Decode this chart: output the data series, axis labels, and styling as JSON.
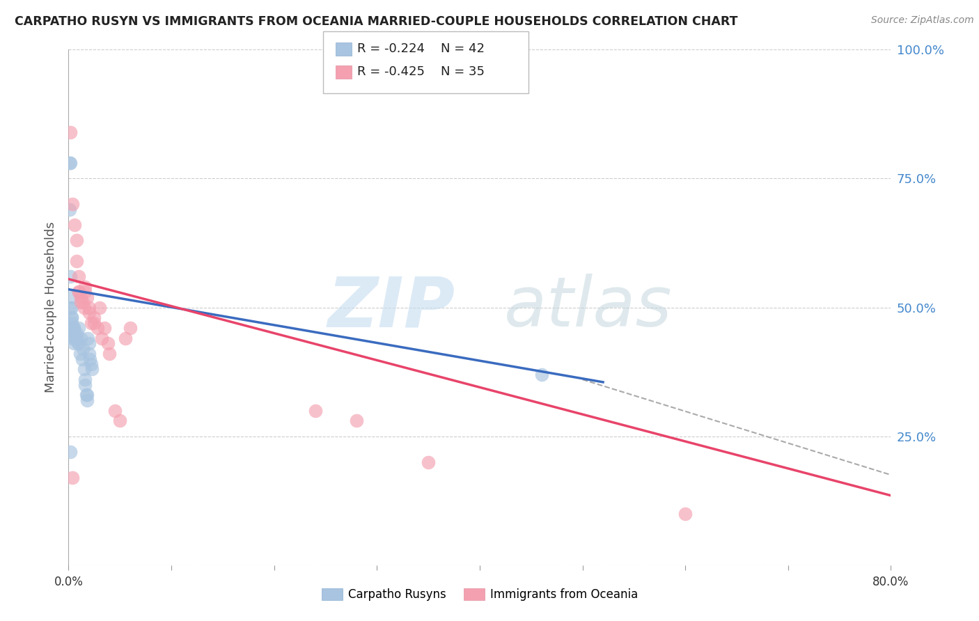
{
  "title": "CARPATHO RUSYN VS IMMIGRANTS FROM OCEANIA MARRIED-COUPLE HOUSEHOLDS CORRELATION CHART",
  "source": "Source: ZipAtlas.com",
  "ylabel": "Married-couple Households",
  "xlim": [
    0.0,
    0.8
  ],
  "ylim": [
    0.0,
    1.0
  ],
  "yticks": [
    0.0,
    0.25,
    0.5,
    0.75,
    1.0
  ],
  "ytick_labels": [
    "",
    "25.0%",
    "50.0%",
    "75.0%",
    "100.0%"
  ],
  "xticks": [
    0.0,
    0.1,
    0.2,
    0.3,
    0.4,
    0.5,
    0.6,
    0.7,
    0.8
  ],
  "xtick_labels": [
    "0.0%",
    "",
    "",
    "",
    "",
    "",
    "",
    "",
    "80.0%"
  ],
  "blue_color": "#a8c4e0",
  "pink_color": "#f4a0b0",
  "blue_line_color": "#3a6bbf",
  "pink_line_color": "#e8446a",
  "dashed_line_color": "#aaaaaa",
  "legend_R_blue": "-0.224",
  "legend_N_blue": "42",
  "legend_R_pink": "-0.425",
  "legend_N_pink": "35",
  "legend_label_blue": "Carpatho Rusyns",
  "legend_label_pink": "Immigrants from Oceania",
  "blue_scatter_x": [
    0.001,
    0.001,
    0.002,
    0.002,
    0.002,
    0.003,
    0.003,
    0.003,
    0.003,
    0.003,
    0.004,
    0.004,
    0.004,
    0.005,
    0.005,
    0.005,
    0.006,
    0.006,
    0.007,
    0.008,
    0.008,
    0.009,
    0.01,
    0.01,
    0.011,
    0.012,
    0.013,
    0.014,
    0.015,
    0.016,
    0.016,
    0.017,
    0.018,
    0.018,
    0.019,
    0.02,
    0.02,
    0.021,
    0.022,
    0.023,
    0.46,
    0.002
  ],
  "blue_scatter_y": [
    0.78,
    0.69,
    0.78,
    0.56,
    0.5,
    0.52,
    0.5,
    0.48,
    0.48,
    0.47,
    0.46,
    0.46,
    0.44,
    0.46,
    0.46,
    0.43,
    0.44,
    0.45,
    0.44,
    0.44,
    0.45,
    0.43,
    0.46,
    0.43,
    0.41,
    0.44,
    0.4,
    0.42,
    0.38,
    0.36,
    0.35,
    0.33,
    0.33,
    0.32,
    0.44,
    0.43,
    0.41,
    0.4,
    0.39,
    0.38,
    0.37,
    0.22
  ],
  "pink_scatter_x": [
    0.002,
    0.004,
    0.006,
    0.008,
    0.008,
    0.01,
    0.01,
    0.01,
    0.012,
    0.012,
    0.014,
    0.015,
    0.016,
    0.016,
    0.018,
    0.02,
    0.02,
    0.022,
    0.025,
    0.025,
    0.028,
    0.03,
    0.032,
    0.035,
    0.038,
    0.04,
    0.045,
    0.05,
    0.055,
    0.06,
    0.24,
    0.28,
    0.35,
    0.6,
    0.004
  ],
  "pink_scatter_y": [
    0.84,
    0.7,
    0.66,
    0.63,
    0.59,
    0.56,
    0.53,
    0.53,
    0.52,
    0.51,
    0.51,
    0.5,
    0.54,
    0.53,
    0.52,
    0.5,
    0.49,
    0.47,
    0.47,
    0.48,
    0.46,
    0.5,
    0.44,
    0.46,
    0.43,
    0.41,
    0.3,
    0.28,
    0.44,
    0.46,
    0.3,
    0.28,
    0.2,
    0.1,
    0.17
  ],
  "blue_line_x": [
    0.0,
    0.52
  ],
  "blue_line_y": [
    0.535,
    0.355
  ],
  "pink_line_x": [
    0.0,
    0.8
  ],
  "pink_line_y": [
    0.555,
    0.135
  ],
  "dashed_line_x": [
    0.5,
    0.8
  ],
  "dashed_line_y": [
    0.36,
    0.175
  ],
  "background_color": "#ffffff",
  "grid_color": "#cccccc"
}
